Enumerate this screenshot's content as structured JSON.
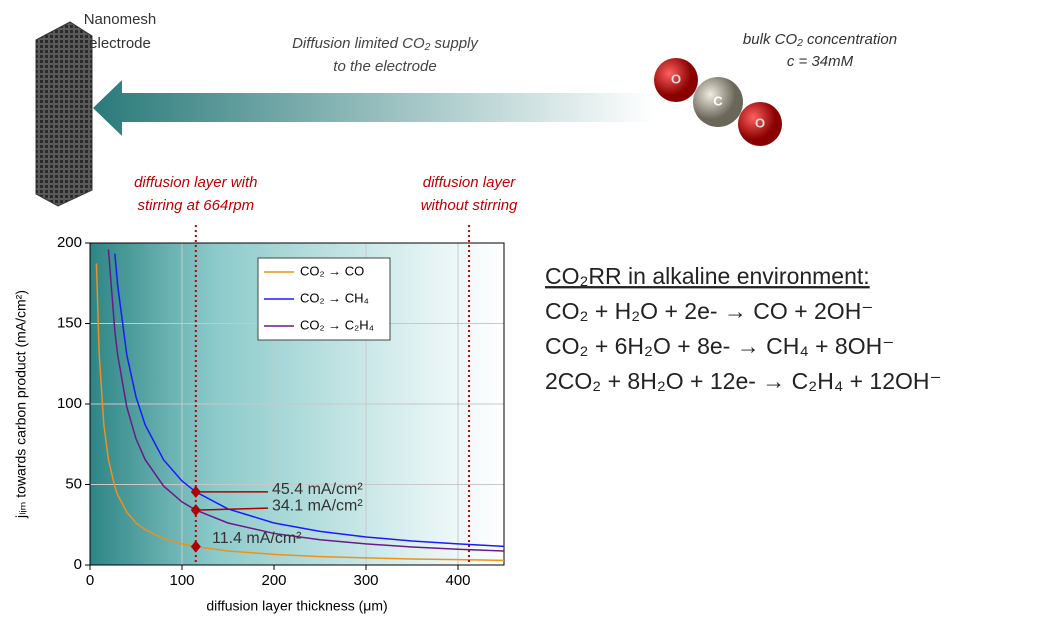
{
  "chart_data": {
    "type": "line",
    "x_label": "diffusion layer thickness (μm)",
    "y_label": "jₗᵢₘ towards carbon product (mA/cm²)",
    "x": [
      7,
      10,
      15,
      20,
      27,
      30,
      40,
      50,
      60,
      80,
      100,
      115,
      150,
      200,
      250,
      300,
      350,
      400,
      450
    ],
    "series": [
      {
        "name": "CO₂ → CO",
        "color": "#f0901a",
        "values": [
          187.3,
          131.1,
          87.4,
          65.6,
          48.6,
          43.7,
          32.8,
          26.2,
          21.9,
          16.4,
          13.1,
          11.4,
          8.7,
          6.6,
          5.2,
          4.4,
          3.7,
          3.3,
          2.9
        ]
      },
      {
        "name": "CO₂ → CH₄",
        "color": "#1a1aff",
        "values": [
          null,
          null,
          null,
          null,
          193.4,
          174.0,
          130.5,
          104.4,
          87.0,
          65.3,
          52.2,
          45.4,
          34.8,
          26.1,
          20.9,
          17.4,
          14.9,
          13.1,
          11.6
        ]
      },
      {
        "name": "CO₂ → C₂H₄",
        "color": "#6a1a8a",
        "values": [
          null,
          null,
          null,
          196.1,
          145.3,
          130.7,
          98.1,
          78.4,
          65.4,
          49.0,
          39.2,
          34.1,
          26.1,
          19.6,
          15.7,
          13.1,
          11.2,
          9.8,
          8.7
        ]
      }
    ],
    "points": {
      "color": "#b00000",
      "x": [
        115,
        115,
        115
      ],
      "values": [
        45.4,
        34.1,
        11.4
      ],
      "value_labels": [
        "45.4 mA/cm²",
        "34.1 mA/cm²",
        "11.4 mA/cm²"
      ]
    },
    "vlines": {
      "color": "#c00000",
      "x": [
        115,
        412
      ],
      "labels": [
        [
          "diffusion layer with",
          "stirring at 664rpm"
        ],
        [
          "diffusion layer",
          "without stirring"
        ]
      ]
    },
    "xlim": [
      0,
      450
    ],
    "xticks": [
      0,
      100,
      200,
      300,
      400
    ],
    "ylim": [
      0,
      200
    ],
    "yticks": [
      0,
      50,
      100,
      150,
      200
    ],
    "grid": true
  },
  "diagram": {
    "electrode": [
      "Nanomesh",
      "electrode"
    ],
    "supply": [
      "Diffusion limited CO₂ supply",
      "to the electrode"
    ],
    "bulk": [
      "bulk CO₂ concentration",
      "c = 34mM"
    ],
    "molecule": [
      "O",
      "C",
      "O"
    ]
  },
  "equations": {
    "title": "CO₂RR in alkaline environment:",
    "lines": [
      "CO₂ + H₂O + 2e- → CO + 2OH⁻",
      "CO₂ + 6H₂O + 8e- → CH₄ + 8OH⁻",
      "2CO₂ + 8H₂O + 12e- → C₂H₄ + 12OH⁻"
    ]
  }
}
